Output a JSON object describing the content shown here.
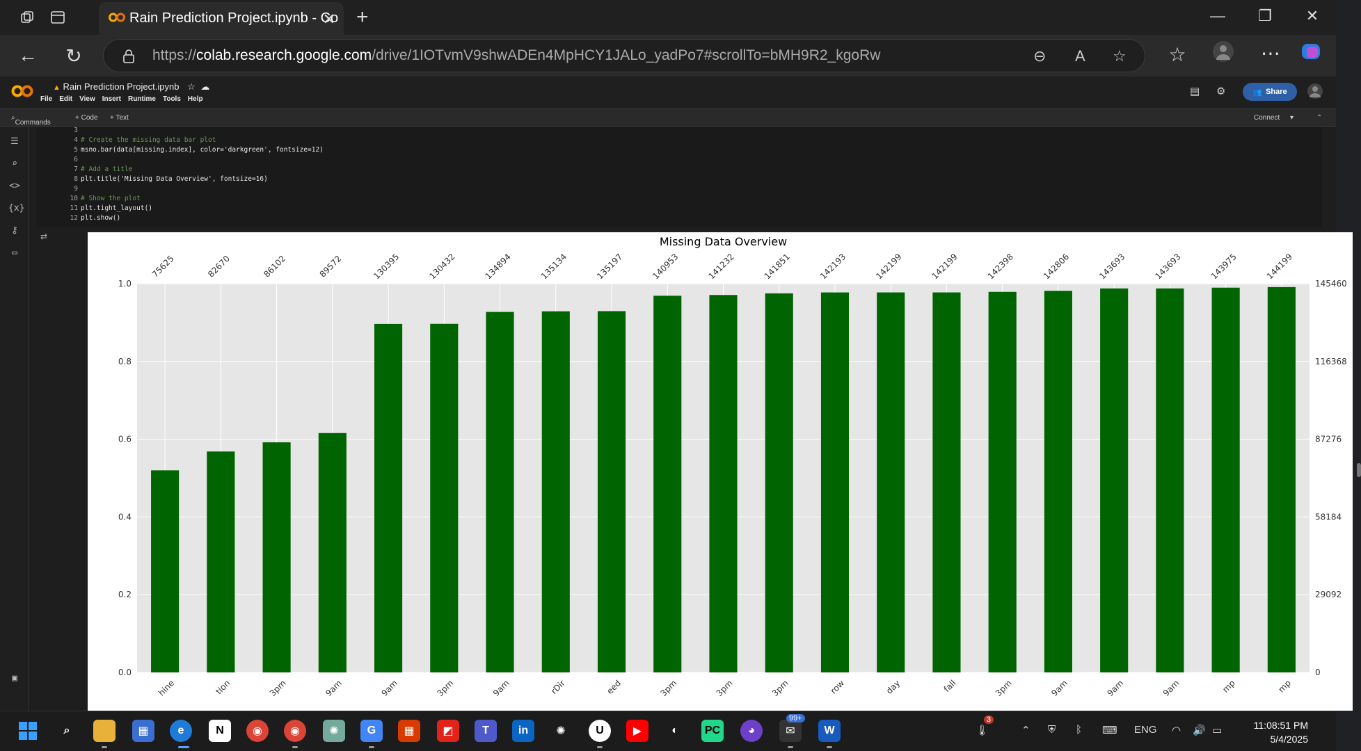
{
  "browser": {
    "tab_title": "Rain Prediction Project.ipynb - Co",
    "url_prefix": "https://",
    "url_host": "colab.research.google.com",
    "url_path": "/drive/1IOTvmV9shwADEn4MpHCY1JALo_yadPo7#scrollTo=bMH9R2_kgoRw"
  },
  "colab": {
    "notebook_title": "Rain Prediction Project.ipynb",
    "menu": [
      "File",
      "Edit",
      "View",
      "Insert",
      "Runtime",
      "Tools",
      "Help"
    ],
    "share_label": "Share",
    "commands_label": "Commands",
    "add_code_label": "+ Code",
    "add_text_label": "+ Text",
    "connect_label": "Connect"
  },
  "code_cell": {
    "lines": [
      {
        "n": "3",
        "text": ""
      },
      {
        "n": "4",
        "text": "# Create the missing data bar plot",
        "kind": "comment"
      },
      {
        "n": "5",
        "text": "msno.bar(data[missing.index], color='darkgreen', fontsize=12)",
        "kind": "code"
      },
      {
        "n": "6",
        "text": ""
      },
      {
        "n": "7",
        "text": "# Add a title",
        "kind": "comment"
      },
      {
        "n": "8",
        "text": "plt.title('Missing Data Overview', fontsize=16)",
        "kind": "code"
      },
      {
        "n": "9",
        "text": ""
      },
      {
        "n": "10",
        "text": "# Show the plot",
        "kind": "comment"
      },
      {
        "n": "11",
        "text": "plt.tight_layout()",
        "kind": "code"
      },
      {
        "n": "12",
        "text": "plt.show()",
        "kind": "code"
      }
    ]
  },
  "chart_data": {
    "type": "bar",
    "title": "Missing Data Overview",
    "bar_color": "#006400",
    "background": "#e6e6e6",
    "categories": [
      "...hine",
      "...tion",
      "...3pm",
      "...9am",
      "...9am",
      "...3pm",
      "...9am",
      "...rDir",
      "...eed",
      "...3pm",
      "...3pm",
      "...3pm",
      "...row",
      "...day",
      "...fall",
      "...3pm",
      "...9am",
      "...9am",
      "...9am",
      "...mp",
      "...mp"
    ],
    "counts": [
      75625,
      82670,
      86102,
      89572,
      130395,
      130432,
      134894,
      135134,
      135197,
      140953,
      141232,
      141851,
      142193,
      142199,
      142199,
      142398,
      142806,
      143693,
      143693,
      143975,
      144199
    ],
    "total": 145460,
    "ylim": [
      0,
      1.0
    ],
    "left_ticks": [
      "0.0",
      "0.2",
      "0.4",
      "0.6",
      "0.8",
      "1.0"
    ],
    "right_ticks": [
      "0",
      "29092",
      "58184",
      "87276",
      "116368",
      "145460"
    ],
    "grid": true
  },
  "taskbar": {
    "mail_badge": "99+",
    "temp_badge": "3",
    "language": "ENG",
    "time": "11:08:51 PM",
    "date": "5/4/2025"
  }
}
